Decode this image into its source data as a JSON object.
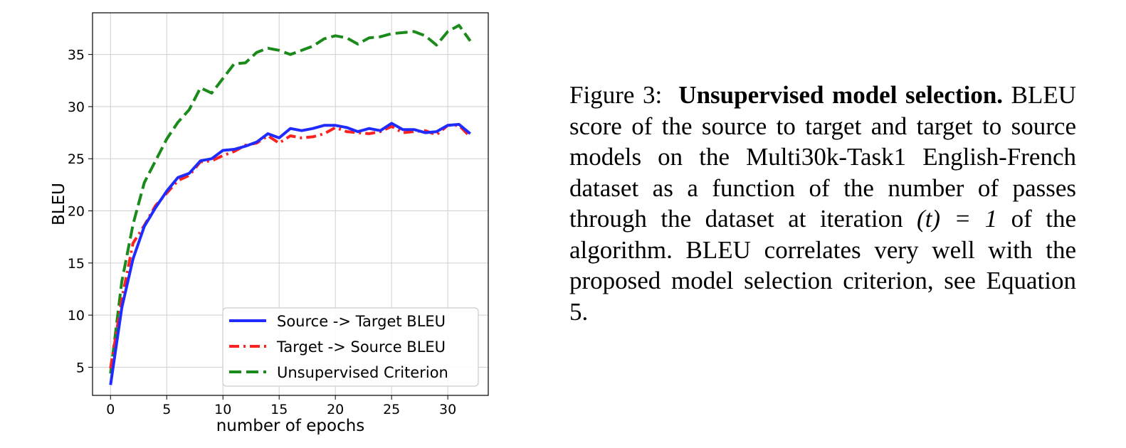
{
  "chart_data": {
    "type": "line",
    "xlabel": "number of epochs",
    "ylabel": "BLEU",
    "xlim": [
      -1.6,
      33.6
    ],
    "ylim": [
      2.3,
      39.0
    ],
    "xticks": [
      0,
      5,
      10,
      15,
      20,
      25,
      30
    ],
    "yticks": [
      5,
      10,
      15,
      20,
      25,
      30,
      35
    ],
    "grid": true,
    "legend_position": "lower-right",
    "x": [
      0,
      1,
      2,
      3,
      4,
      5,
      6,
      7,
      8,
      9,
      10,
      11,
      12,
      13,
      14,
      15,
      16,
      17,
      18,
      19,
      20,
      21,
      22,
      23,
      24,
      25,
      26,
      27,
      28,
      29,
      30,
      31,
      32
    ],
    "series": [
      {
        "name": "Source -> Target BLEU",
        "color": "#1f2bff",
        "style": "solid",
        "values": [
          3.3,
          10.7,
          15.4,
          18.5,
          20.3,
          21.9,
          23.2,
          23.6,
          24.8,
          25.0,
          25.8,
          25.9,
          26.2,
          26.6,
          27.4,
          27.0,
          27.9,
          27.7,
          27.9,
          28.2,
          28.2,
          28.0,
          27.6,
          27.9,
          27.7,
          28.4,
          27.8,
          27.8,
          27.5,
          27.6,
          28.2,
          28.3,
          27.4
        ]
      },
      {
        "name": "Target -> Source BLEU",
        "color": "#ff2020",
        "style": "dashdot",
        "values": [
          4.9,
          11.5,
          16.9,
          18.6,
          20.5,
          21.7,
          22.9,
          23.4,
          24.7,
          24.8,
          25.3,
          25.7,
          26.3,
          26.5,
          27.2,
          26.5,
          27.2,
          27.0,
          27.1,
          27.4,
          28.0,
          27.6,
          27.5,
          27.4,
          27.6,
          28.1,
          27.5,
          27.6,
          27.7,
          27.3,
          28.2,
          28.2,
          27.1
        ]
      },
      {
        "name": "Unsupervised Criterion",
        "color": "#1a8a1a",
        "style": "dashed",
        "values": [
          4.4,
          13.2,
          18.7,
          22.7,
          24.8,
          26.9,
          28.5,
          29.7,
          31.8,
          31.3,
          32.7,
          34.1,
          34.2,
          35.2,
          35.6,
          35.4,
          35.0,
          35.4,
          35.8,
          36.5,
          36.8,
          36.6,
          36.0,
          36.6,
          36.7,
          37.0,
          37.1,
          37.2,
          36.8,
          35.9,
          37.2,
          37.8,
          36.3
        ]
      }
    ]
  },
  "caption": {
    "figure_label": "Figure 3:",
    "title": "Unsupervised model selection.",
    "body_part1": "BLEU score of the source to target and target to source models on the Multi30k-Task1 English-French dataset as a function of the number of passes through the dataset at iteration",
    "math_expr": "(t) = 1",
    "body_part2": "of the algorithm. BLEU correlates very well with the proposed model selection criterion, see Equation 5."
  }
}
